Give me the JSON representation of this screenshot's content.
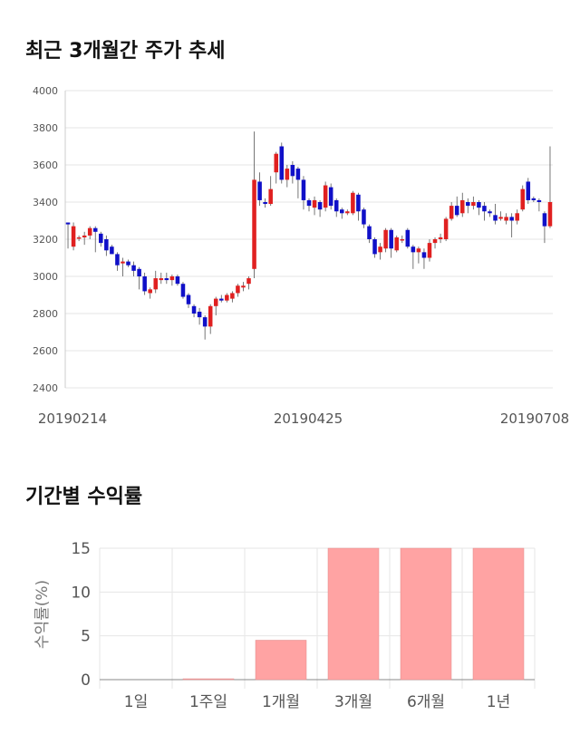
{
  "headings": {
    "price_trend": "최근 3개월간 주가 추세",
    "period_return": "기간별 수익률"
  },
  "colors": {
    "up": "#e02020",
    "down": "#1010c8",
    "wick": "#555555",
    "bar": "#ffa3a3",
    "bar_edge": "#e08a8a",
    "grid": "#e6e6e6"
  },
  "chart_data": [
    {
      "type": "candlestick",
      "ylim": [
        2400,
        4000
      ],
      "y_ticks": [
        2400,
        2600,
        2800,
        3000,
        3200,
        3400,
        3600,
        3800,
        4000
      ],
      "x_tick_labels": [
        "20190214",
        "20190425",
        "20190708"
      ],
      "grid": true,
      "candles": [
        [
          3290,
          3280,
          3150,
          3290
        ],
        [
          3160,
          3270,
          3140,
          3290
        ],
        [
          3210,
          3210,
          3190,
          3220
        ],
        [
          3210,
          3220,
          3170,
          3240
        ],
        [
          3220,
          3260,
          3200,
          3270
        ],
        [
          3260,
          3240,
          3130,
          3270
        ],
        [
          3230,
          3180,
          3160,
          3240
        ],
        [
          3200,
          3140,
          3110,
          3220
        ],
        [
          3160,
          3120,
          3120,
          3170
        ],
        [
          3120,
          3060,
          3030,
          3130
        ],
        [
          3070,
          3080,
          3000,
          3100
        ],
        [
          3080,
          3060,
          3050,
          3090
        ],
        [
          3060,
          3030,
          3000,
          3080
        ],
        [
          3040,
          3000,
          2930,
          3050
        ],
        [
          3000,
          2920,
          2900,
          3020
        ],
        [
          2910,
          2930,
          2880,
          2940
        ],
        [
          2930,
          2990,
          2910,
          3030
        ],
        [
          2980,
          2990,
          2960,
          3020
        ],
        [
          2990,
          2980,
          2960,
          3020
        ],
        [
          2980,
          3000,
          2950,
          3010
        ],
        [
          3000,
          2960,
          2950,
          3010
        ],
        [
          2960,
          2890,
          2880,
          2970
        ],
        [
          2900,
          2850,
          2830,
          2910
        ],
        [
          2840,
          2800,
          2780,
          2850
        ],
        [
          2810,
          2780,
          2740,
          2830
        ],
        [
          2780,
          2730,
          2660,
          2790
        ],
        [
          2730,
          2840,
          2690,
          2850
        ],
        [
          2840,
          2880,
          2790,
          2890
        ],
        [
          2880,
          2870,
          2860,
          2900
        ],
        [
          2870,
          2900,
          2860,
          2910
        ],
        [
          2880,
          2910,
          2860,
          2920
        ],
        [
          2910,
          2950,
          2890,
          2960
        ],
        [
          2940,
          2950,
          2920,
          2970
        ],
        [
          2960,
          2990,
          2930,
          3000
        ],
        [
          3040,
          3520,
          2990,
          3780
        ],
        [
          3510,
          3410,
          3380,
          3560
        ],
        [
          3400,
          3390,
          3370,
          3420
        ],
        [
          3390,
          3470,
          3380,
          3540
        ],
        [
          3560,
          3660,
          3500,
          3670
        ],
        [
          3700,
          3520,
          3500,
          3720
        ],
        [
          3520,
          3580,
          3480,
          3600
        ],
        [
          3600,
          3540,
          3500,
          3620
        ],
        [
          3580,
          3520,
          3420,
          3590
        ],
        [
          3520,
          3410,
          3360,
          3540
        ],
        [
          3410,
          3380,
          3350,
          3420
        ],
        [
          3370,
          3410,
          3330,
          3430
        ],
        [
          3400,
          3360,
          3320,
          3410
        ],
        [
          3370,
          3490,
          3350,
          3510
        ],
        [
          3480,
          3380,
          3360,
          3500
        ],
        [
          3410,
          3350,
          3320,
          3420
        ],
        [
          3360,
          3340,
          3310,
          3370
        ],
        [
          3340,
          3350,
          3330,
          3360
        ],
        [
          3340,
          3450,
          3330,
          3460
        ],
        [
          3440,
          3350,
          3300,
          3450
        ],
        [
          3360,
          3280,
          3260,
          3370
        ],
        [
          3270,
          3200,
          3180,
          3280
        ],
        [
          3200,
          3120,
          3100,
          3210
        ],
        [
          3130,
          3160,
          3090,
          3180
        ],
        [
          3150,
          3250,
          3130,
          3260
        ],
        [
          3250,
          3150,
          3100,
          3260
        ],
        [
          3140,
          3210,
          3130,
          3220
        ],
        [
          3200,
          3200,
          3180,
          3220
        ],
        [
          3250,
          3160,
          3150,
          3260
        ],
        [
          3160,
          3130,
          3040,
          3170
        ],
        [
          3130,
          3150,
          3070,
          3160
        ],
        [
          3130,
          3100,
          3040,
          3150
        ],
        [
          3100,
          3180,
          3080,
          3200
        ],
        [
          3180,
          3200,
          3150,
          3210
        ],
        [
          3200,
          3210,
          3180,
          3230
        ],
        [
          3200,
          3310,
          3190,
          3320
        ],
        [
          3310,
          3380,
          3300,
          3400
        ],
        [
          3380,
          3330,
          3320,
          3430
        ],
        [
          3340,
          3410,
          3320,
          3450
        ],
        [
          3400,
          3380,
          3340,
          3420
        ],
        [
          3380,
          3400,
          3360,
          3430
        ],
        [
          3400,
          3370,
          3330,
          3410
        ],
        [
          3380,
          3350,
          3300,
          3400
        ],
        [
          3350,
          3340,
          3320,
          3360
        ],
        [
          3330,
          3300,
          3280,
          3390
        ],
        [
          3310,
          3320,
          3300,
          3350
        ],
        [
          3300,
          3320,
          3280,
          3340
        ],
        [
          3320,
          3300,
          3210,
          3340
        ],
        [
          3300,
          3340,
          3280,
          3360
        ],
        [
          3360,
          3470,
          3350,
          3490
        ],
        [
          3510,
          3410,
          3390,
          3530
        ],
        [
          3420,
          3410,
          3400,
          3430
        ],
        [
          3410,
          3400,
          3350,
          3420
        ],
        [
          3340,
          3270,
          3180,
          3350
        ],
        [
          3270,
          3400,
          3260,
          3700
        ]
      ]
    },
    {
      "type": "bar",
      "ylabel": "수익률(%)",
      "ylim": [
        0,
        15
      ],
      "y_ticks": [
        0,
        5,
        10,
        15
      ],
      "grid": true,
      "categories": [
        "1일",
        "1주일",
        "1개월",
        "3개월",
        "6개월",
        "1년"
      ],
      "values": [
        0,
        0.1,
        4.5,
        15,
        15,
        15
      ]
    }
  ]
}
